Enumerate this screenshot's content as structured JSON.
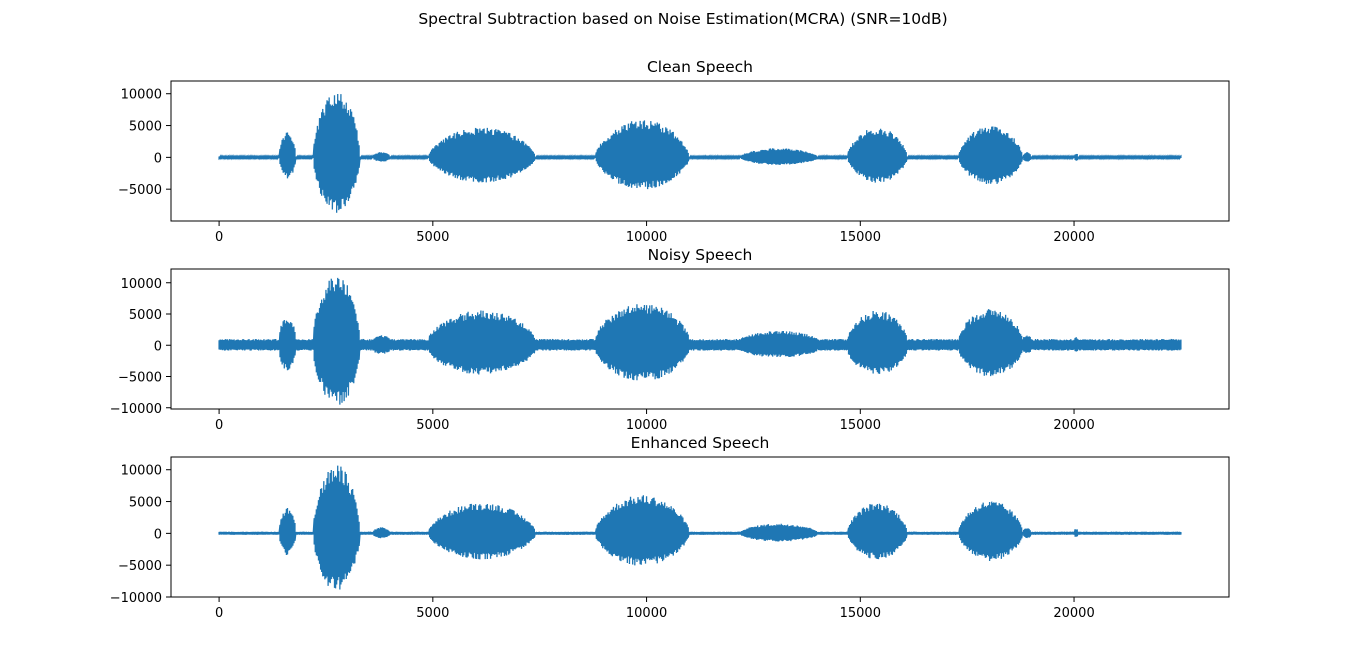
{
  "chart_data": {
    "type": "line",
    "suptitle": "Spectral Subtraction based on Noise Estimation(MCRA) (SNR=10dB)",
    "line_color": "#1f77b4",
    "xlim": [
      -1125,
      23625
    ],
    "x_ticks": [
      0,
      5000,
      10000,
      15000,
      20000
    ],
    "x_tick_labels": [
      "0",
      "5000",
      "10000",
      "15000",
      "20000"
    ],
    "signal_length": 22500,
    "segments": [
      {
        "start": 1400,
        "end": 1800,
        "amp": 3800
      },
      {
        "start": 2200,
        "end": 3300,
        "amp": 10500
      },
      {
        "start": 3600,
        "end": 4000,
        "amp": 700
      },
      {
        "start": 4900,
        "end": 7400,
        "amp": 4600
      },
      {
        "start": 8800,
        "end": 11000,
        "amp": 5800
      },
      {
        "start": 12200,
        "end": 14000,
        "amp": 1300
      },
      {
        "start": 14700,
        "end": 16100,
        "amp": 4600
      },
      {
        "start": 17300,
        "end": 18800,
        "amp": 4900
      },
      {
        "start": 18800,
        "end": 19000,
        "amp": 700
      },
      {
        "start": 20000,
        "end": 20100,
        "amp": 500
      }
    ],
    "subplots": [
      {
        "title": "Clean Speech",
        "noise_floor": 150,
        "ylim": [
          -10000,
          12000
        ],
        "y_ticks": [
          -5000,
          0,
          5000,
          10000
        ],
        "y_tick_labels": [
          "−5000",
          "0",
          "5000",
          "10000"
        ]
      },
      {
        "title": "Noisy Speech",
        "noise_floor": 1000,
        "ylim": [
          -10200,
          12200
        ],
        "y_ticks": [
          -10000,
          -5000,
          0,
          5000,
          10000
        ],
        "y_tick_labels": [
          "−10000",
          "−5000",
          "0",
          "5000",
          "10000"
        ]
      },
      {
        "title": "Enhanced Speech",
        "noise_floor": 250,
        "ylim": [
          -10000,
          12000
        ],
        "y_ticks": [
          -10000,
          -5000,
          0,
          5000,
          10000
        ],
        "y_tick_labels": [
          "−10000",
          "−5000",
          "0",
          "5000",
          "10000"
        ]
      }
    ]
  }
}
